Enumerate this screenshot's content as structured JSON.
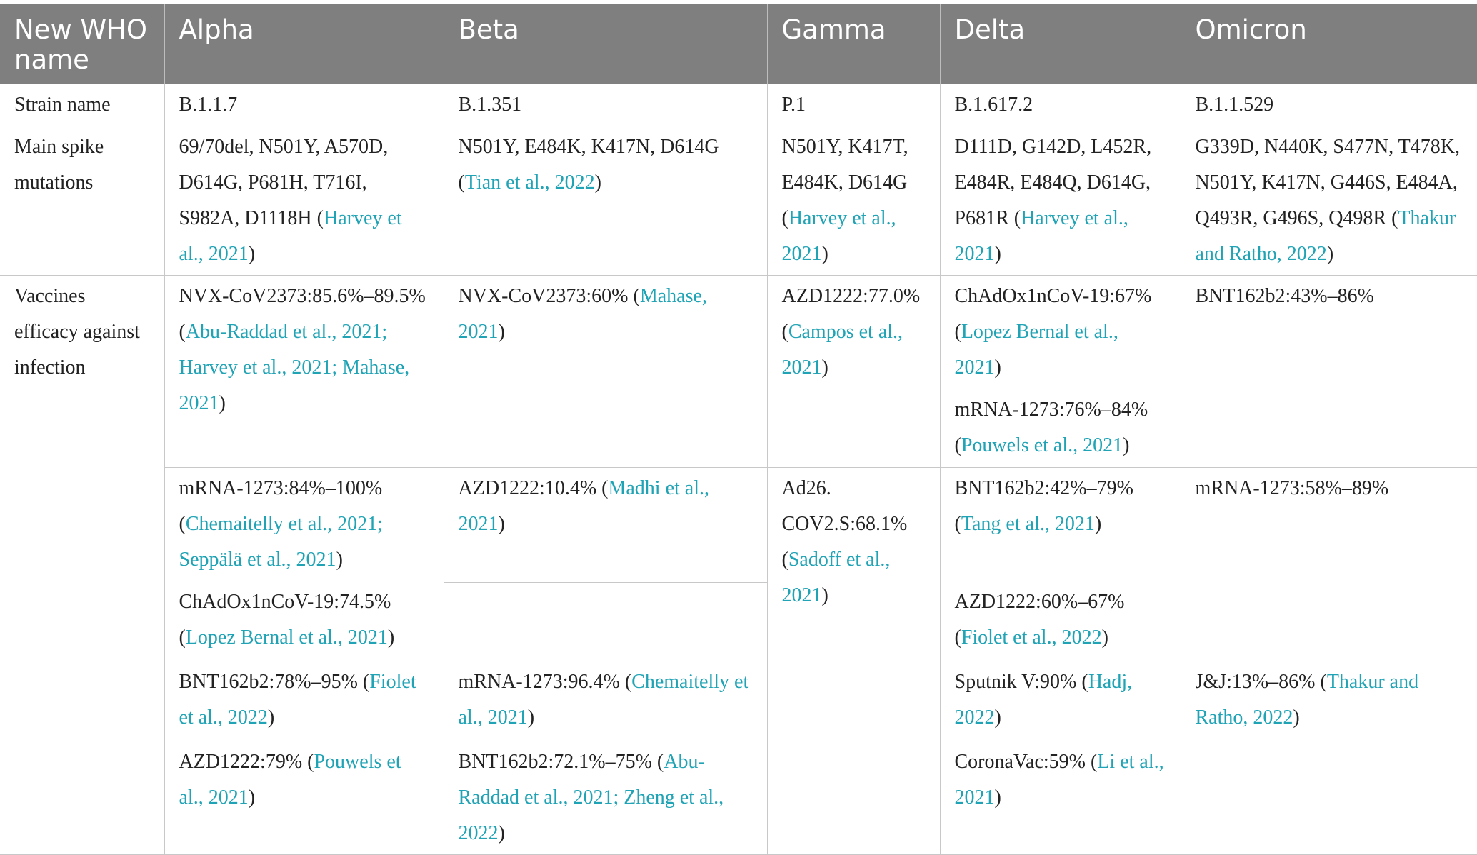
{
  "header": {
    "col0": "New WHO name",
    "col1": "Alpha",
    "col2": "Beta",
    "col3": "Gamma",
    "col4": "Delta",
    "col5": "Omicron"
  },
  "strain": {
    "label": "Strain name",
    "alpha": "B.1.1.7",
    "beta": "B.1.351",
    "gamma": "P.1",
    "delta": "B.1.617.2",
    "omicron": "B.1.1.529"
  },
  "spike": {
    "label": "Main spike mutations",
    "alpha": {
      "text": "69/70del, N501Y, A570D, D614G, P681H, T716I, S982A, D1118H (",
      "ref": "Harvey et al., 2021",
      "end": ")"
    },
    "beta": {
      "text": "N501Y, E484K, K417N, D614G (",
      "ref": "Tian et al., 2022",
      "end": ")"
    },
    "gamma": {
      "text": "N501Y, K417T, E484K, D614G (",
      "ref": "Harvey et al., 2021",
      "end": ")"
    },
    "delta": {
      "text": "D111D, G142D, L452R, E484R, E484Q, D614G, P681R (",
      "ref": "Harvey et al., 2021",
      "end": ")"
    },
    "omicron": {
      "text": "G339D, N440K, S477N, T478K, N501Y, K417N, G446S, E484A, Q493R, G496S, Q498R (",
      "ref": "Thakur and Ratho, 2022",
      "end": ")"
    }
  },
  "vaccines": {
    "label": "Vaccines efficacy against infection",
    "alpha": [
      {
        "text": "NVX-CoV2373:85.6%–89.5% (",
        "ref": "Abu-Raddad et al., 2021; Harvey et al., 2021; Mahase, 2021",
        "end": ")"
      },
      {
        "text": "mRNA-1273:84%–100% (",
        "ref": "Chemaitelly et al., 2021; Seppälä et al., 2021",
        "end": ")"
      },
      {
        "text": "ChAdOx1nCoV-19:74.5% (",
        "ref": "Lopez Bernal et al., 2021",
        "end": ")"
      },
      {
        "text": "BNT162b2:78%–95% (",
        "ref": "Fiolet et al., 2022",
        "end": ")"
      },
      {
        "text": "AZD1222:79% (",
        "ref": "Pouwels et al., 2021",
        "end": ")"
      }
    ],
    "beta": [
      {
        "text": "NVX-CoV2373:60% (",
        "ref": "Mahase, 2021",
        "end": ")"
      },
      {
        "text": "AZD1222:10.4% (",
        "ref": "Madhi et al., 2021",
        "end": ")"
      },
      {
        "text": "mRNA-1273:96.4% (",
        "ref": "Chemaitelly et al., 2021",
        "end": ")"
      },
      {
        "text": "BNT162b2:72.1%–75% (",
        "ref": "Abu-Raddad et al., 2021; Zheng et al., 2022",
        "end": ")"
      }
    ],
    "gamma": [
      {
        "text": "AZD1222:77.0% (",
        "ref": "Campos et al., 2021",
        "end": ")"
      },
      {
        "text": "Ad26. COV2.S:68.1% (",
        "ref": "Sadoff et al., 2021",
        "end": ")"
      }
    ],
    "delta": [
      {
        "text": "ChAdOx1nCoV-19:67% (",
        "ref": "Lopez Bernal et al., 2021",
        "end": ")"
      },
      {
        "text": "mRNA-1273:76%–84%(",
        "ref": "Pouwels et al., 2021",
        "end": ")"
      },
      {
        "text": "BNT162b2:42%–79% (",
        "ref": "Tang et al., 2021",
        "end": ")"
      },
      {
        "text": "AZD1222:60%–67%(",
        "ref": "Fiolet et al., 2022",
        "end": ")"
      },
      {
        "text": "Sputnik V:90% (",
        "ref": "Hadj, 2022",
        "end": ")"
      },
      {
        "text": "CoronaVac:59% (",
        "ref": "Li et al., 2021",
        "end": ")"
      }
    ],
    "omicron": [
      {
        "text": "BNT162b2:43%–86%",
        "ref": "",
        "end": ""
      },
      {
        "text": "mRNA-1273:58%–89%",
        "ref": "",
        "end": ""
      },
      {
        "text": "J&J:13%–86% (",
        "ref": "Thakur and Ratho, 2022",
        "end": ")"
      }
    ]
  }
}
